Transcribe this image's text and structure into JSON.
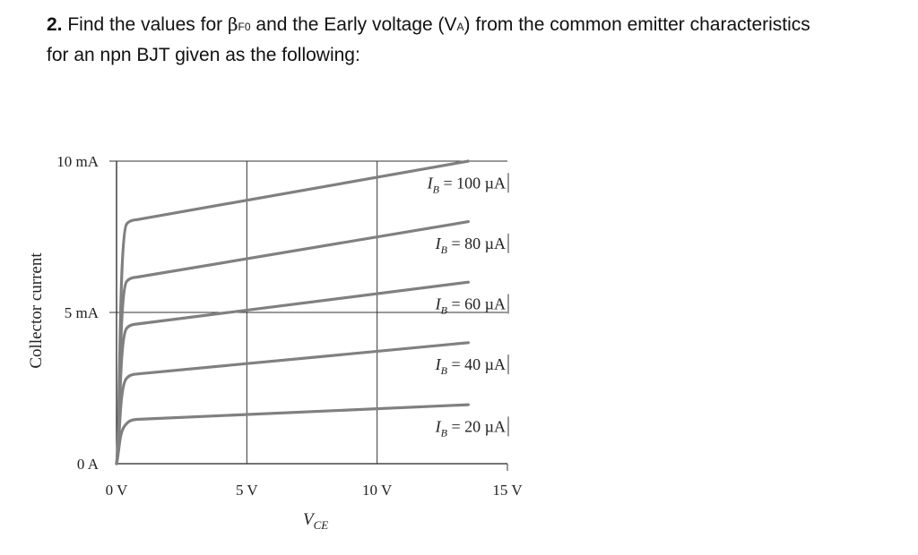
{
  "question": {
    "number": "2.",
    "text_a": "Find the values for",
    "beta_symbol": "β",
    "beta_subscript": "F0",
    "text_b": "and the Early voltage (V",
    "va_subscript": "A",
    "text_c": ") from the common emitter characteristics",
    "text_d": "for an npn BJT given as the following:"
  },
  "chart_data": {
    "type": "line",
    "title": "",
    "xlabel_main": "V",
    "xlabel_sub": "CE",
    "ylabel": "Collector current",
    "xlim": [
      0,
      15
    ],
    "ylim": [
      0,
      10
    ],
    "x_unit": "V",
    "y_unit": "mA",
    "x_ticks": [
      {
        "value": 0,
        "label": "0 V"
      },
      {
        "value": 5,
        "label": "5 V"
      },
      {
        "value": 10,
        "label": "10 V"
      },
      {
        "value": 15,
        "label": "15 V"
      }
    ],
    "y_ticks": [
      {
        "value": 0,
        "label": "0 A"
      },
      {
        "value": 5,
        "label": "5 mA"
      },
      {
        "value": 10,
        "label": "10 mA"
      }
    ],
    "grid": true,
    "series_color": "#808080",
    "series": [
      {
        "name": "I_B = 100 µA",
        "label_main": "I",
        "label_sub": "B",
        "label_rest": " = 100 µA",
        "knee": [
          0.5,
          8.05
        ],
        "end": [
          13.5,
          10.0
        ]
      },
      {
        "name": "I_B = 80 µA",
        "label_main": "I",
        "label_sub": "B",
        "label_rest": " = 80 µA",
        "knee": [
          0.5,
          6.15
        ],
        "end": [
          13.5,
          8.0
        ]
      },
      {
        "name": "I_B = 60 µA",
        "label_main": "I",
        "label_sub": "B",
        "label_rest": " = 60 µA",
        "knee": [
          0.5,
          4.6
        ],
        "end": [
          13.5,
          6.0
        ]
      },
      {
        "name": "I_B = 40 µA",
        "label_main": "I",
        "label_sub": "B",
        "label_rest": " = 40 µA",
        "knee": [
          0.5,
          2.95
        ],
        "end": [
          13.5,
          4.0
        ]
      },
      {
        "name": "I_B = 20 µA",
        "label_main": "I",
        "label_sub": "B",
        "label_rest": " = 20 µA",
        "knee": [
          0.5,
          1.45
        ],
        "end": [
          13.5,
          1.95
        ]
      }
    ]
  }
}
